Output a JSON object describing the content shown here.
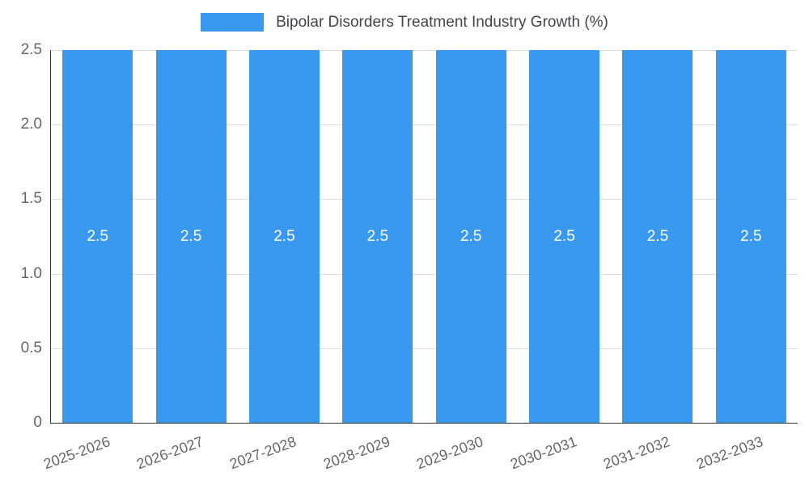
{
  "chart_data": {
    "type": "bar",
    "title": "Bipolar Disorders Treatment Industry Growth (%)",
    "categories": [
      "2025-2026",
      "2026-2027",
      "2027-2028",
      "2028-2029",
      "2029-2030",
      "2030-2031",
      "2031-2032",
      "2032-2033"
    ],
    "values": [
      2.5,
      2.5,
      2.5,
      2.5,
      2.5,
      2.5,
      2.5,
      2.5
    ],
    "value_labels": [
      "2.5",
      "2.5",
      "2.5",
      "2.5",
      "2.5",
      "2.5",
      "2.5",
      "2.5"
    ],
    "xlabel": "",
    "ylabel": "",
    "ylim": [
      0,
      2.5
    ],
    "yticks": [
      0,
      0.5,
      1.0,
      1.5,
      2.0,
      2.5
    ],
    "ytick_labels": [
      "0",
      "0.5",
      "1.0",
      "1.5",
      "2.0",
      "2.5"
    ],
    "grid": "horizontal",
    "legend_position": "top-center",
    "colors": {
      "bar": "#3899ee",
      "bar_label": "#ffffff",
      "title": "#40454b",
      "tick_label": "#666666",
      "gridline": "#dedede",
      "axis": "#333333",
      "background": "#ffffff"
    }
  }
}
